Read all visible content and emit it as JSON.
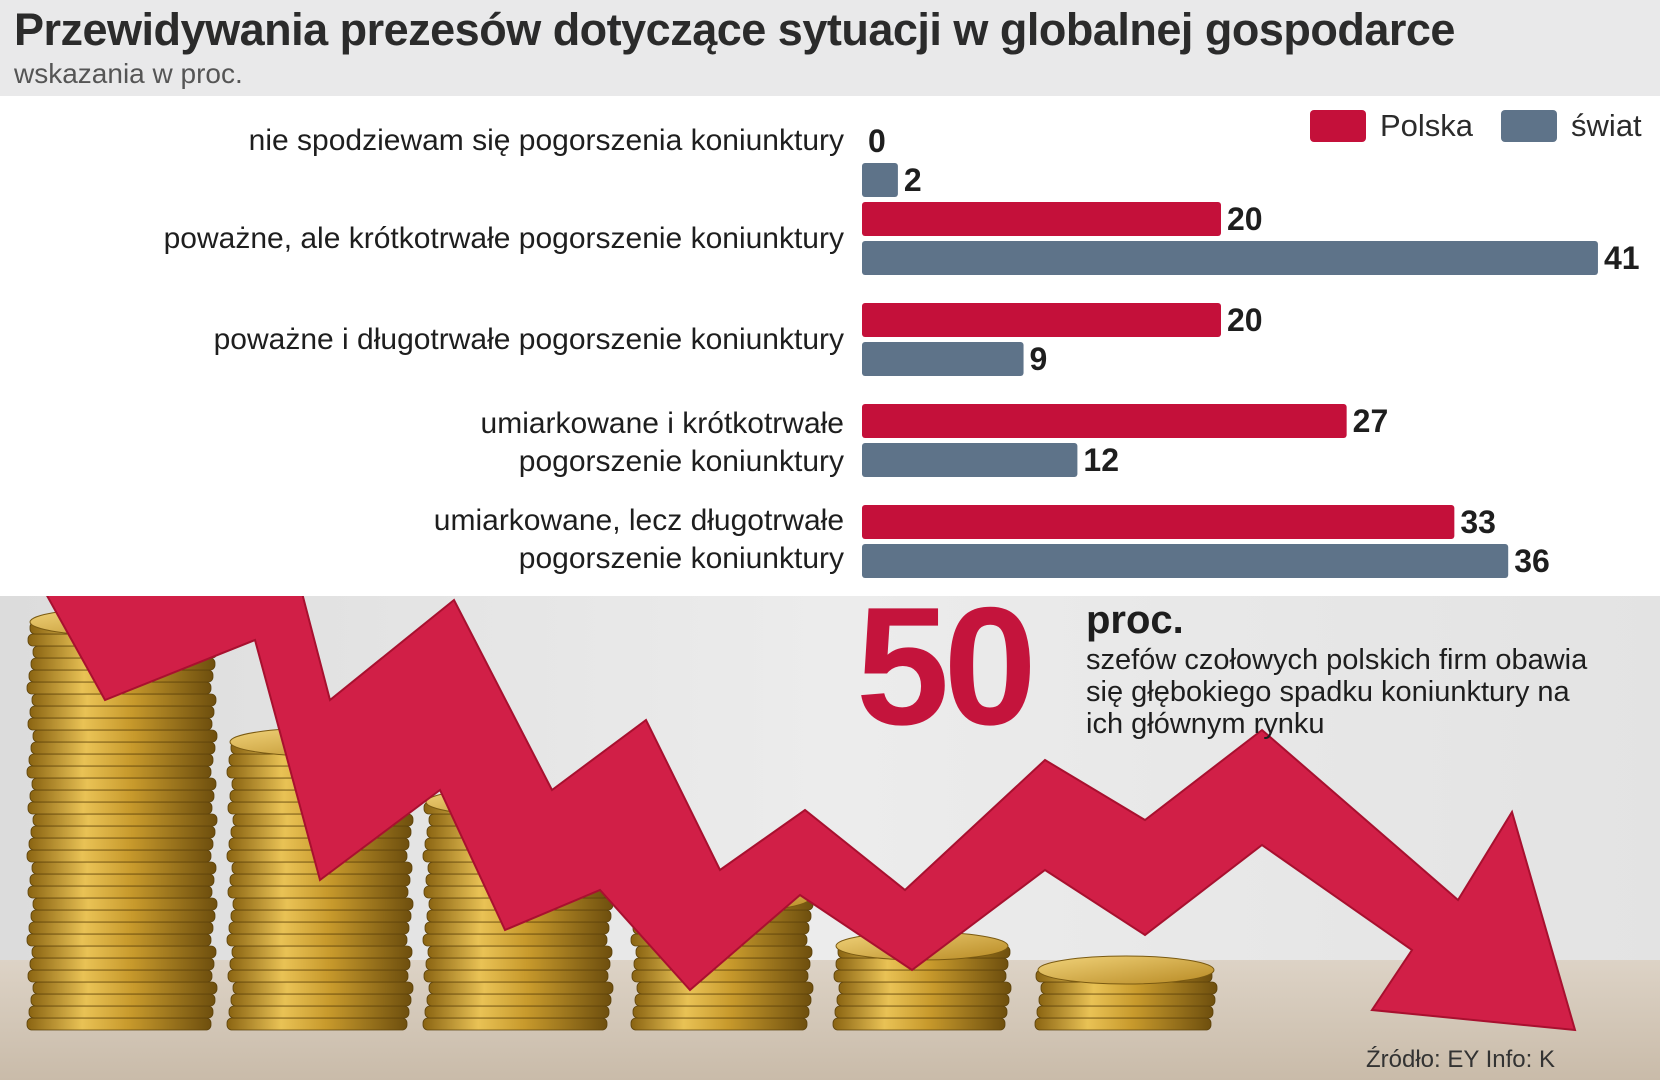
{
  "title": "Przewidywania prezesów  dotyczące sytuacji w globalnej gospodarce",
  "subtitle": "wskazania w proc.",
  "colors": {
    "polska": "#c4103a",
    "swiat": "#5e7389",
    "highlight": "#c4143c",
    "header_band": "#e9e9ea"
  },
  "legend": [
    {
      "label": "Polska",
      "color": "#c4103a"
    },
    {
      "label": "świat",
      "color": "#5e7389"
    }
  ],
  "chart_data": {
    "type": "bar",
    "orientation": "horizontal",
    "unit": "proc.",
    "categories": [
      [
        "nie spodziewam się pogorszenia koniunktury"
      ],
      [
        "poważne, ale krótkotrwałe pogorszenie koniunktury"
      ],
      [
        "poważne i długotrwałe pogorszenie koniunktury"
      ],
      [
        "umiarkowane i krótkotrwałe",
        "pogorszenie koniunktury"
      ],
      [
        "umiarkowane, lecz długotrwałe",
        "pogorszenie koniunktury"
      ]
    ],
    "series": [
      {
        "name": "Polska",
        "values": [
          0,
          20,
          20,
          27,
          33
        ]
      },
      {
        "name": "świat",
        "values": [
          2,
          41,
          9,
          12,
          36
        ]
      }
    ],
    "xlim": [
      0,
      41
    ],
    "grid": false,
    "legend_position": "top-right"
  },
  "highlight": {
    "number": "50",
    "unit": "proc.",
    "text": "szefów czołowych polskich firm obawia się głębokiego spadku koniunktury na ich głównym rynku"
  },
  "source": "Źródło: EY  Info: K",
  "illustration": {
    "description_icon": "falling-arrow-over-coin-stacks"
  }
}
